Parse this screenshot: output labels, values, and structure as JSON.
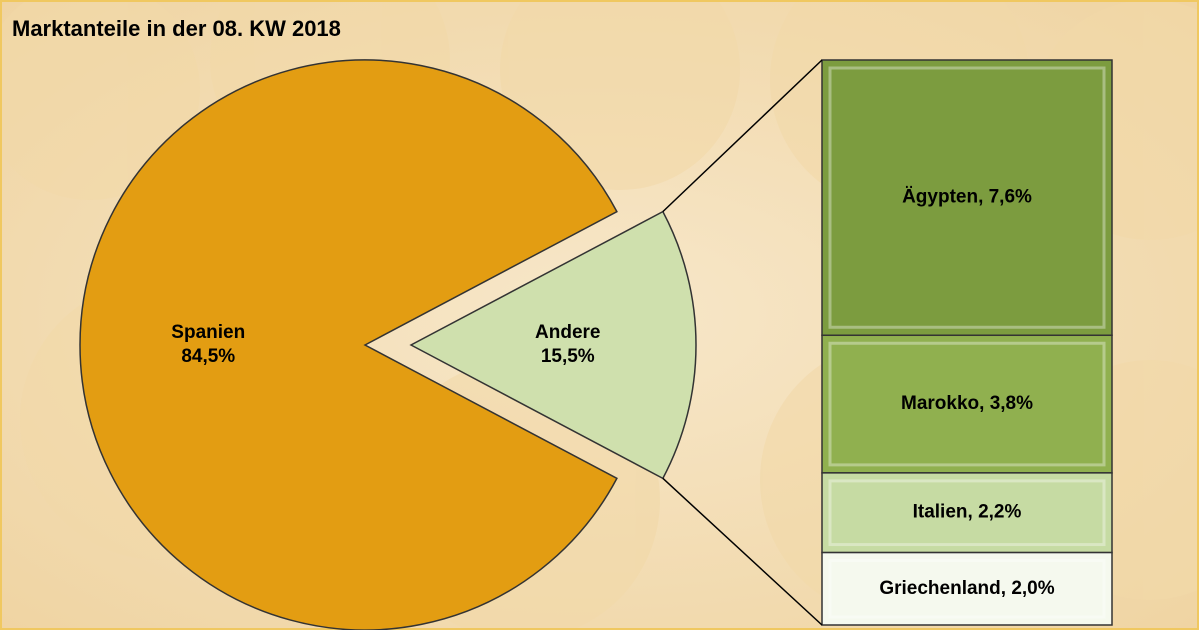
{
  "chart_data": {
    "type": "pie-of-bar",
    "title": "Marktanteile in der 08. KW 2018",
    "categories": [
      "Spanien",
      "Andere"
    ],
    "values": [
      84.5,
      15.5
    ],
    "value_labels": [
      "84,5%",
      "15,5%"
    ],
    "colors": [
      "#e39d12",
      "#cfe0ad"
    ],
    "breakdown": {
      "values": [
        7.6,
        3.8,
        2.2,
        2.0
      ],
      "value_labels": [
        "Ägypten, 7,6%",
        "Marokko, 3,8%",
        "Italien, 2,2%",
        "Griechenland, 2,0%"
      ],
      "colors": [
        "#7c9c3f",
        "#90b04f",
        "#c6dba3",
        "#f5f9ee"
      ]
    }
  }
}
